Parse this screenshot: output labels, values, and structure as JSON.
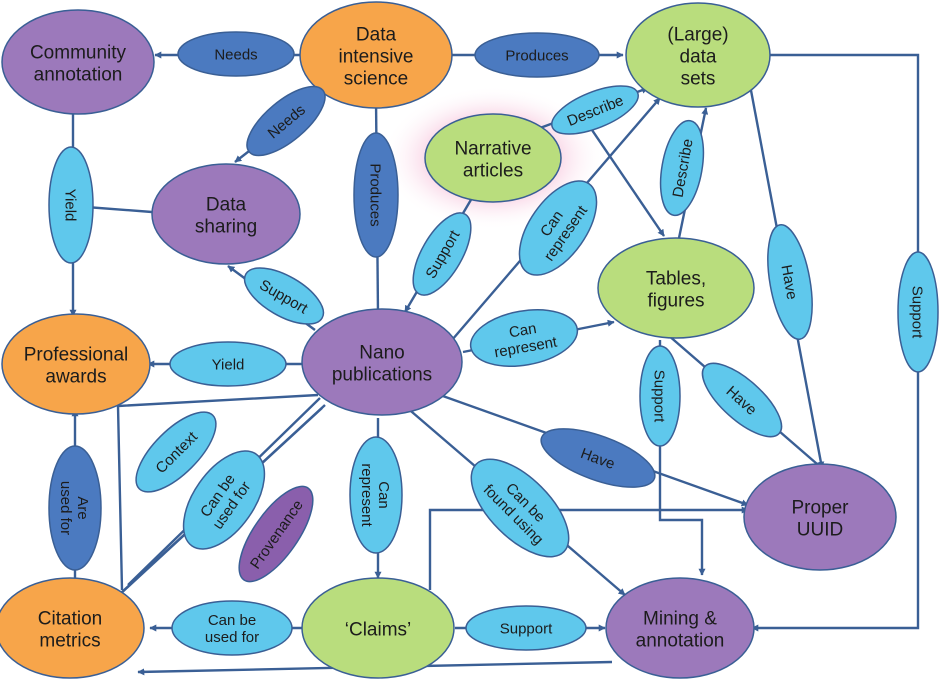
{
  "colors": {
    "orange": "#f7a54a",
    "purple": "#9c79bb",
    "green": "#b9dd7d",
    "light_blue": "#5fc8ec",
    "dark_blue": "#4b7ac0",
    "edge": "#3a5f95"
  },
  "nodes": {
    "data_intensive_science": {
      "lines": [
        "Data",
        "intensive",
        "science"
      ]
    },
    "community_annotation": {
      "lines": [
        "Community",
        "annotation"
      ]
    },
    "large_data_sets": {
      "lines": [
        "(Large)",
        "data",
        "sets"
      ]
    },
    "narrative_articles": {
      "lines": [
        "Narrative",
        "articles"
      ]
    },
    "data_sharing": {
      "lines": [
        "Data",
        "sharing"
      ]
    },
    "tables_figures": {
      "lines": [
        "Tables,",
        "figures"
      ]
    },
    "professional_awards": {
      "lines": [
        "Professional",
        "awards"
      ]
    },
    "nano_publications": {
      "lines": [
        "Nano",
        "publications"
      ]
    },
    "proper_uuid": {
      "lines": [
        "Proper",
        "UUID"
      ]
    },
    "citation_metrics": {
      "lines": [
        "Citation",
        "metrics"
      ]
    },
    "claims": {
      "lines": [
        "‘Claims’"
      ]
    },
    "mining_annotation": {
      "lines": [
        "Mining &",
        "annotation"
      ]
    }
  },
  "labels": {
    "needs_1": {
      "lines": [
        "Needs"
      ]
    },
    "produces_1": {
      "lines": [
        "Produces"
      ]
    },
    "needs_2": {
      "lines": [
        "Needs"
      ]
    },
    "yield_1": {
      "lines": [
        "Yield"
      ]
    },
    "produces_2": {
      "lines": [
        "Produces"
      ]
    },
    "describe_1": {
      "lines": [
        "Describe"
      ]
    },
    "describe_2": {
      "lines": [
        "Describe"
      ]
    },
    "can_represent_1": {
      "lines": [
        "Can",
        "represent"
      ]
    },
    "support_1": {
      "lines": [
        "Support"
      ]
    },
    "support_2": {
      "lines": [
        "Support"
      ]
    },
    "have_1": {
      "lines": [
        "Have"
      ]
    },
    "support_3": {
      "lines": [
        "Support"
      ]
    },
    "can_represent_2": {
      "lines": [
        "Can",
        "represent"
      ]
    },
    "yield_2": {
      "lines": [
        "Yield"
      ]
    },
    "support_4": {
      "lines": [
        "Support"
      ]
    },
    "have_2": {
      "lines": [
        "Have"
      ]
    },
    "context": {
      "lines": [
        "Context"
      ]
    },
    "can_be_used_for_1": {
      "lines": [
        "Can be",
        "used for"
      ]
    },
    "can_represent_3": {
      "lines": [
        "Can",
        "represent"
      ]
    },
    "can_be_found_using": {
      "lines": [
        "Can be",
        "found using"
      ]
    },
    "have_3": {
      "lines": [
        "Have"
      ]
    },
    "provenance": {
      "lines": [
        "Provenance"
      ]
    },
    "are_used_for": {
      "lines": [
        "Are",
        "used for"
      ]
    },
    "can_be_used_for_2": {
      "lines": [
        "Can be",
        "used for"
      ]
    },
    "support_5": {
      "lines": [
        "Support"
      ]
    }
  }
}
